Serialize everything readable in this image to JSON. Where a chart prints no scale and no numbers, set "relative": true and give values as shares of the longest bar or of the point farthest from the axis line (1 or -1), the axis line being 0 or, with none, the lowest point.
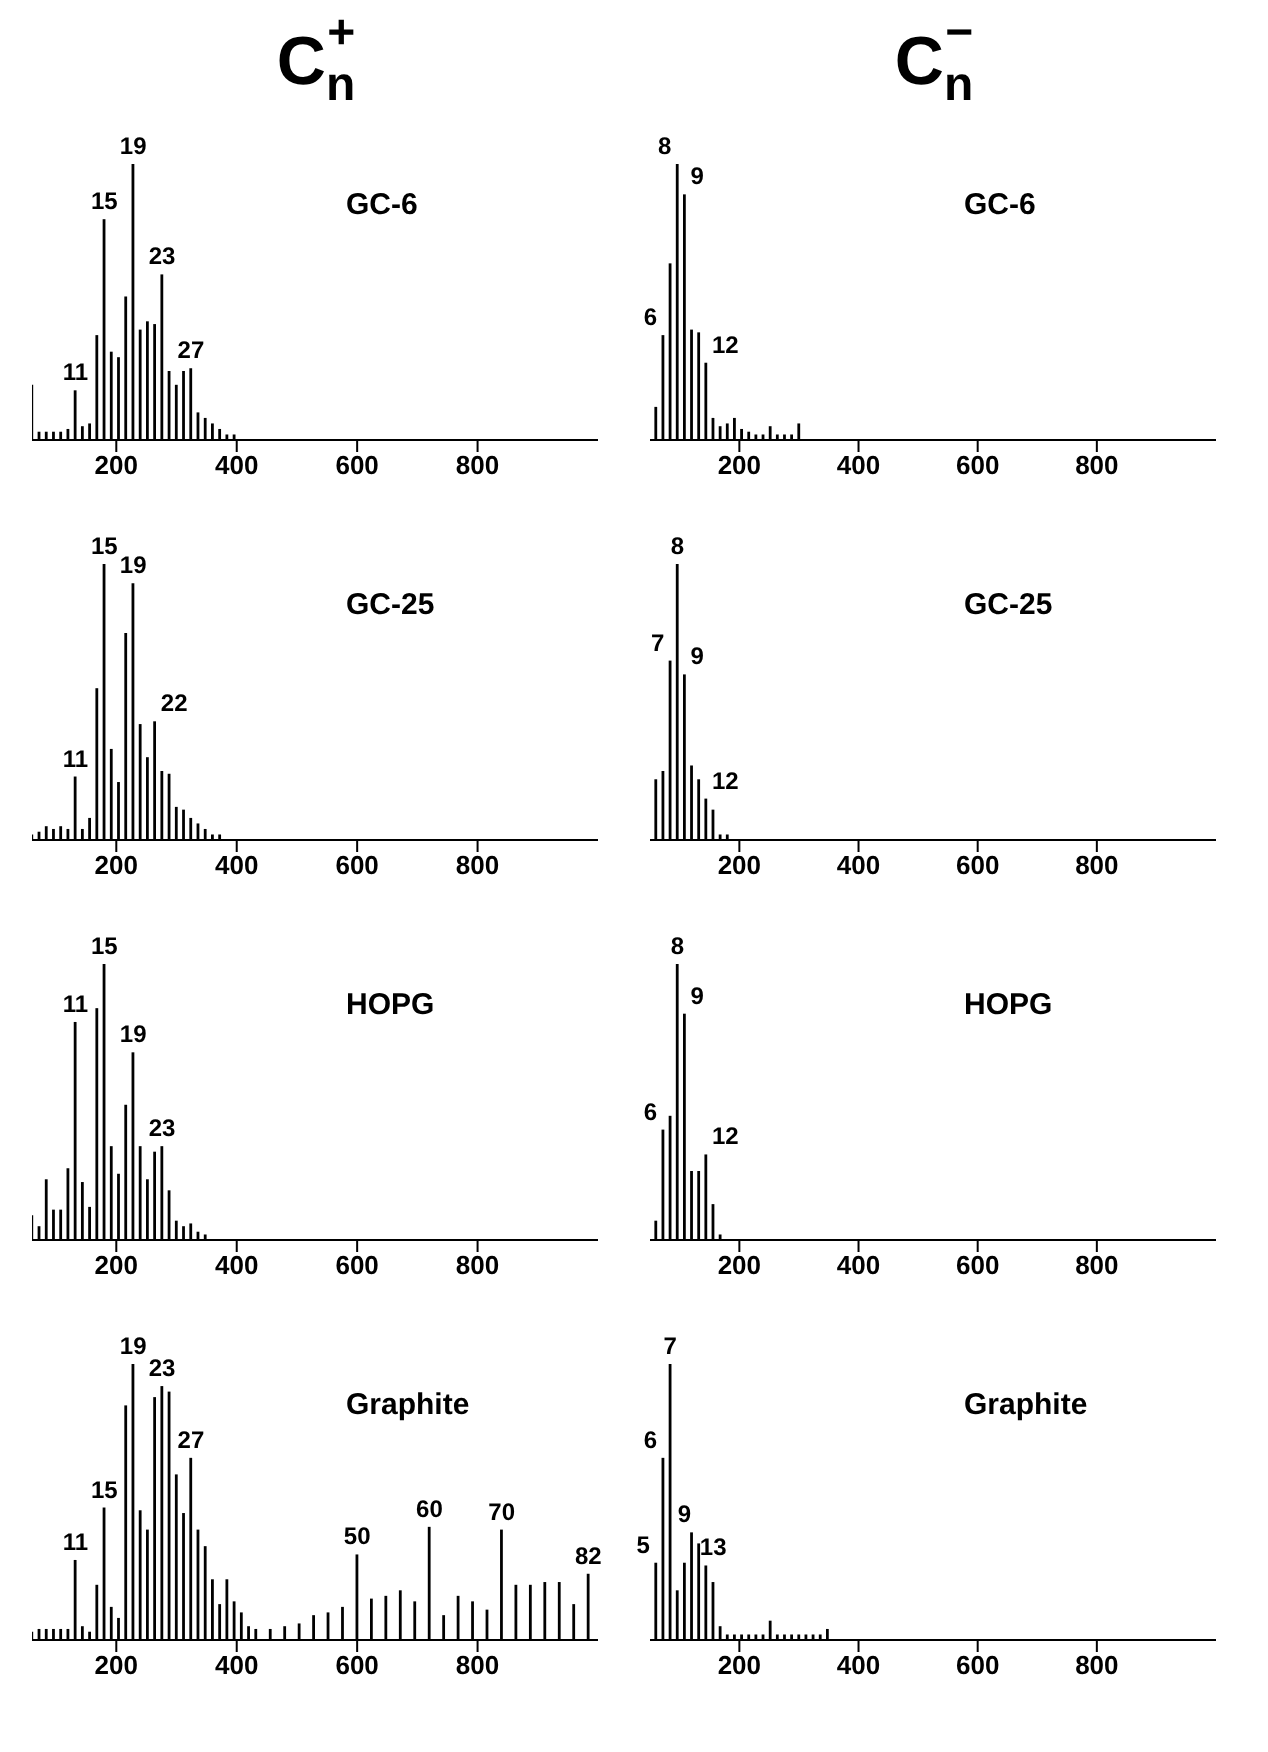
{
  "chart_data": [
    {
      "type": "bar",
      "title": "GC-6",
      "annotations": [
        "C$_{n}$$^{+}$",
        {
          "text": "11",
          "x": 132,
          "y": 0.18
        },
        {
          "text": "15",
          "x": 180,
          "y": 0.8
        },
        {
          "text": "19",
          "x": 228,
          "y": 1
        },
        {
          "text": "23",
          "x": 276,
          "y": 0.6
        },
        {
          "text": "27",
          "x": 324,
          "y": 0.26
        }
      ],
      "relative": true,
      "color": "#000000",
      "xlim": [
        60,
        1000
      ],
      "xticks": [
        200,
        400,
        600,
        800
      ],
      "x": [
        60,
        72,
        84,
        96,
        108,
        120,
        132,
        144,
        156,
        168,
        180,
        192,
        204,
        216,
        228,
        240,
        252,
        264,
        276,
        288,
        300,
        312,
        324,
        336,
        348,
        360,
        372,
        384,
        396
      ],
      "values": [
        0.2,
        0.03,
        0.03,
        0.03,
        0.03,
        0.04,
        0.18,
        0.05,
        0.06,
        0.38,
        0.8,
        0.32,
        0.3,
        0.52,
        1,
        0.4,
        0.43,
        0.42,
        0.6,
        0.25,
        0.2,
        0.25,
        0.26,
        0.1,
        0.08,
        0.06,
        0.04,
        0.02,
        0.02
      ]
    },
    {
      "type": "bar",
      "title": "GC-6",
      "annotations": [
        "C$_{n}$$^{−}$",
        {
          "text": "6",
          "x": 72,
          "y": 0.38
        },
        {
          "text": "8",
          "x": 96,
          "y": 1
        },
        {
          "text": "9",
          "x": 108,
          "y": 0.89
        },
        {
          "text": "12",
          "x": 144,
          "y": 0.28
        }
      ],
      "relative": true,
      "color": "#000000",
      "xlim": [
        50,
        1000
      ],
      "xticks": [
        200,
        400,
        600,
        800
      ],
      "x": [
        60,
        72,
        84,
        96,
        108,
        120,
        132,
        144,
        156,
        168,
        180,
        192,
        204,
        216,
        228,
        240,
        252,
        264,
        276,
        288,
        300
      ],
      "values": [
        0.12,
        0.38,
        0.64,
        1,
        0.89,
        0.4,
        0.39,
        0.28,
        0.08,
        0.05,
        0.06,
        0.08,
        0.04,
        0.03,
        0.02,
        0.02,
        0.05,
        0.02,
        0.02,
        0.02,
        0.06
      ]
    },
    {
      "type": "bar",
      "title": "GC-25",
      "annotations": [
        {
          "text": "11",
          "x": 132,
          "y": 0.23
        },
        {
          "text": "15",
          "x": 180,
          "y": 1
        },
        {
          "text": "19",
          "x": 228,
          "y": 0.93
        },
        {
          "text": "22",
          "x": 264,
          "y": 0.43
        }
      ],
      "relative": true,
      "color": "#000000",
      "xlim": [
        60,
        1000
      ],
      "xticks": [
        200,
        400,
        600,
        800
      ],
      "x": [
        60,
        72,
        84,
        96,
        108,
        120,
        132,
        144,
        156,
        168,
        180,
        192,
        204,
        216,
        228,
        240,
        252,
        264,
        276,
        288,
        300,
        312,
        324,
        336,
        348,
        360,
        372
      ],
      "values": [
        0.02,
        0.03,
        0.05,
        0.04,
        0.05,
        0.04,
        0.23,
        0.04,
        0.08,
        0.55,
        1,
        0.33,
        0.21,
        0.75,
        0.93,
        0.42,
        0.3,
        0.43,
        0.25,
        0.24,
        0.12,
        0.11,
        0.08,
        0.06,
        0.04,
        0.02,
        0.02
      ]
    },
    {
      "type": "bar",
      "title": "GC-25",
      "annotations": [
        {
          "text": "7",
          "x": 84,
          "y": 0.65
        },
        {
          "text": "8",
          "x": 96,
          "y": 1
        },
        {
          "text": "9",
          "x": 108,
          "y": 0.6
        },
        {
          "text": "12",
          "x": 144,
          "y": 0.15
        }
      ],
      "relative": true,
      "color": "#000000",
      "xlim": [
        50,
        1000
      ],
      "xticks": [
        200,
        400,
        600,
        800
      ],
      "x": [
        60,
        72,
        84,
        96,
        108,
        120,
        132,
        144,
        156,
        168,
        180
      ],
      "values": [
        0.22,
        0.25,
        0.65,
        1,
        0.6,
        0.27,
        0.22,
        0.15,
        0.11,
        0.02,
        0.02
      ]
    },
    {
      "type": "bar",
      "title": "HOPG",
      "annotations": [
        {
          "text": "11",
          "x": 132,
          "y": 0.79
        },
        {
          "text": "15",
          "x": 180,
          "y": 1
        },
        {
          "text": "19",
          "x": 228,
          "y": 0.68
        },
        {
          "text": "23",
          "x": 276,
          "y": 0.34
        }
      ],
      "relative": true,
      "color": "#000000",
      "xlim": [
        60,
        1000
      ],
      "xticks": [
        200,
        400,
        600,
        800
      ],
      "x": [
        60,
        72,
        84,
        96,
        108,
        120,
        132,
        144,
        156,
        168,
        180,
        192,
        204,
        216,
        228,
        240,
        252,
        264,
        276,
        288,
        300,
        312,
        324,
        336,
        348
      ],
      "values": [
        0.09,
        0.05,
        0.22,
        0.11,
        0.11,
        0.26,
        0.79,
        0.21,
        0.12,
        0.84,
        1,
        0.34,
        0.24,
        0.49,
        0.68,
        0.34,
        0.22,
        0.32,
        0.34,
        0.18,
        0.07,
        0.05,
        0.06,
        0.03,
        0.02
      ]
    },
    {
      "type": "bar",
      "title": "HOPG",
      "annotations": [
        {
          "text": "6",
          "x": 72,
          "y": 0.4
        },
        {
          "text": "8",
          "x": 96,
          "y": 1
        },
        {
          "text": "9",
          "x": 108,
          "y": 0.82
        },
        {
          "text": "12",
          "x": 144,
          "y": 0.31
        }
      ],
      "relative": true,
      "color": "#000000",
      "xlim": [
        50,
        1000
      ],
      "xticks": [
        200,
        400,
        600,
        800
      ],
      "x": [
        60,
        72,
        84,
        96,
        108,
        120,
        132,
        144,
        156,
        168
      ],
      "values": [
        0.07,
        0.4,
        0.45,
        1,
        0.82,
        0.25,
        0.25,
        0.31,
        0.13,
        0.02
      ]
    },
    {
      "type": "bar",
      "title": "Graphite",
      "annotations": [
        {
          "text": "11",
          "x": 132,
          "y": 0.29
        },
        {
          "text": "15",
          "x": 180,
          "y": 0.48
        },
        {
          "text": "19",
          "x": 228,
          "y": 1
        },
        {
          "text": "23",
          "x": 276,
          "y": 0.92
        },
        {
          "text": "27",
          "x": 324,
          "y": 0.66
        },
        {
          "text": "50",
          "x": 600,
          "y": 0.31
        },
        {
          "text": "60",
          "x": 720,
          "y": 0.41
        },
        {
          "text": "70",
          "x": 840,
          "y": 0.4
        },
        {
          "text": "82",
          "x": 984,
          "y": 0.24
        }
      ],
      "relative": true,
      "color": "#000000",
      "xlim": [
        60,
        1000
      ],
      "xticks": [
        200,
        400,
        600,
        800
      ],
      "x": [
        60,
        72,
        84,
        96,
        108,
        120,
        132,
        144,
        156,
        168,
        180,
        192,
        204,
        216,
        228,
        240,
        252,
        264,
        276,
        288,
        300,
        312,
        324,
        336,
        348,
        360,
        372,
        384,
        396,
        408,
        420,
        432,
        456,
        480,
        504,
        528,
        552,
        576,
        600,
        624,
        648,
        672,
        696,
        720,
        744,
        768,
        792,
        816,
        840,
        864,
        888,
        912,
        936,
        960,
        984
      ],
      "values": [
        0.03,
        0.04,
        0.04,
        0.04,
        0.04,
        0.04,
        0.29,
        0.05,
        0.03,
        0.2,
        0.48,
        0.12,
        0.08,
        0.85,
        1,
        0.47,
        0.4,
        0.88,
        0.92,
        0.9,
        0.6,
        0.46,
        0.66,
        0.4,
        0.34,
        0.22,
        0.13,
        0.22,
        0.14,
        0.1,
        0.05,
        0.04,
        0.04,
        0.05,
        0.06,
        0.09,
        0.1,
        0.12,
        0.31,
        0.15,
        0.16,
        0.18,
        0.14,
        0.41,
        0.09,
        0.16,
        0.14,
        0.11,
        0.4,
        0.2,
        0.2,
        0.21,
        0.21,
        0.13,
        0.24
      ]
    },
    {
      "type": "bar",
      "title": "Graphite",
      "annotations": [
        {
          "text": "5",
          "x": 60,
          "y": 0.28
        },
        {
          "text": "6",
          "x": 72,
          "y": 0.66
        },
        {
          "text": "7",
          "x": 84,
          "y": 1
        },
        {
          "text": "9",
          "x": 108,
          "y": 0.28
        },
        {
          "text": "13",
          "x": 156,
          "y": 0.21
        }
      ],
      "relative": true,
      "color": "#000000",
      "xlim": [
        50,
        1000
      ],
      "xticks": [
        200,
        400,
        600,
        800
      ],
      "x": [
        60,
        72,
        84,
        96,
        108,
        120,
        132,
        144,
        156,
        168,
        180,
        192,
        204,
        216,
        228,
        240,
        252,
        264,
        276,
        288,
        300,
        312,
        324,
        336,
        348
      ],
      "values": [
        0.28,
        0.66,
        1,
        0.18,
        0.28,
        0.39,
        0.35,
        0.27,
        0.21,
        0.05,
        0.02,
        0.02,
        0.02,
        0.02,
        0.02,
        0.02,
        0.07,
        0.02,
        0.02,
        0.02,
        0.02,
        0.02,
        0.02,
        0.02,
        0.04
      ]
    }
  ]
}
